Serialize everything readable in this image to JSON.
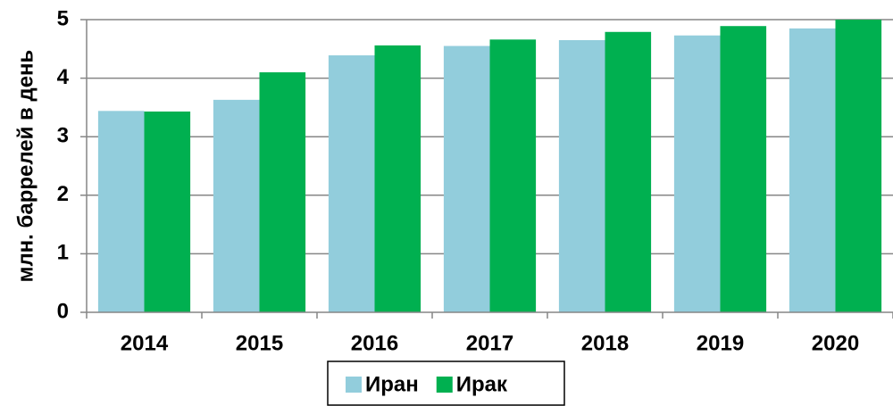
{
  "chart_data": {
    "type": "bar",
    "y_label": "млн. баррелей в день",
    "categories": [
      "2014",
      "2015",
      "2016",
      "2017",
      "2018",
      "2019",
      "2020"
    ],
    "series": [
      {
        "name": "Иран",
        "color": "#92cddc",
        "values": [
          3.44,
          3.63,
          4.39,
          4.55,
          4.65,
          4.73,
          4.85
        ]
      },
      {
        "name": "Ирак",
        "color": "#00b050",
        "values": [
          3.43,
          4.1,
          4.56,
          4.66,
          4.79,
          4.89,
          5.0
        ]
      }
    ],
    "ylim": [
      0,
      5
    ],
    "yticks": [
      0,
      1,
      2,
      3,
      4,
      5
    ],
    "grid": true,
    "legend": "bottom"
  }
}
